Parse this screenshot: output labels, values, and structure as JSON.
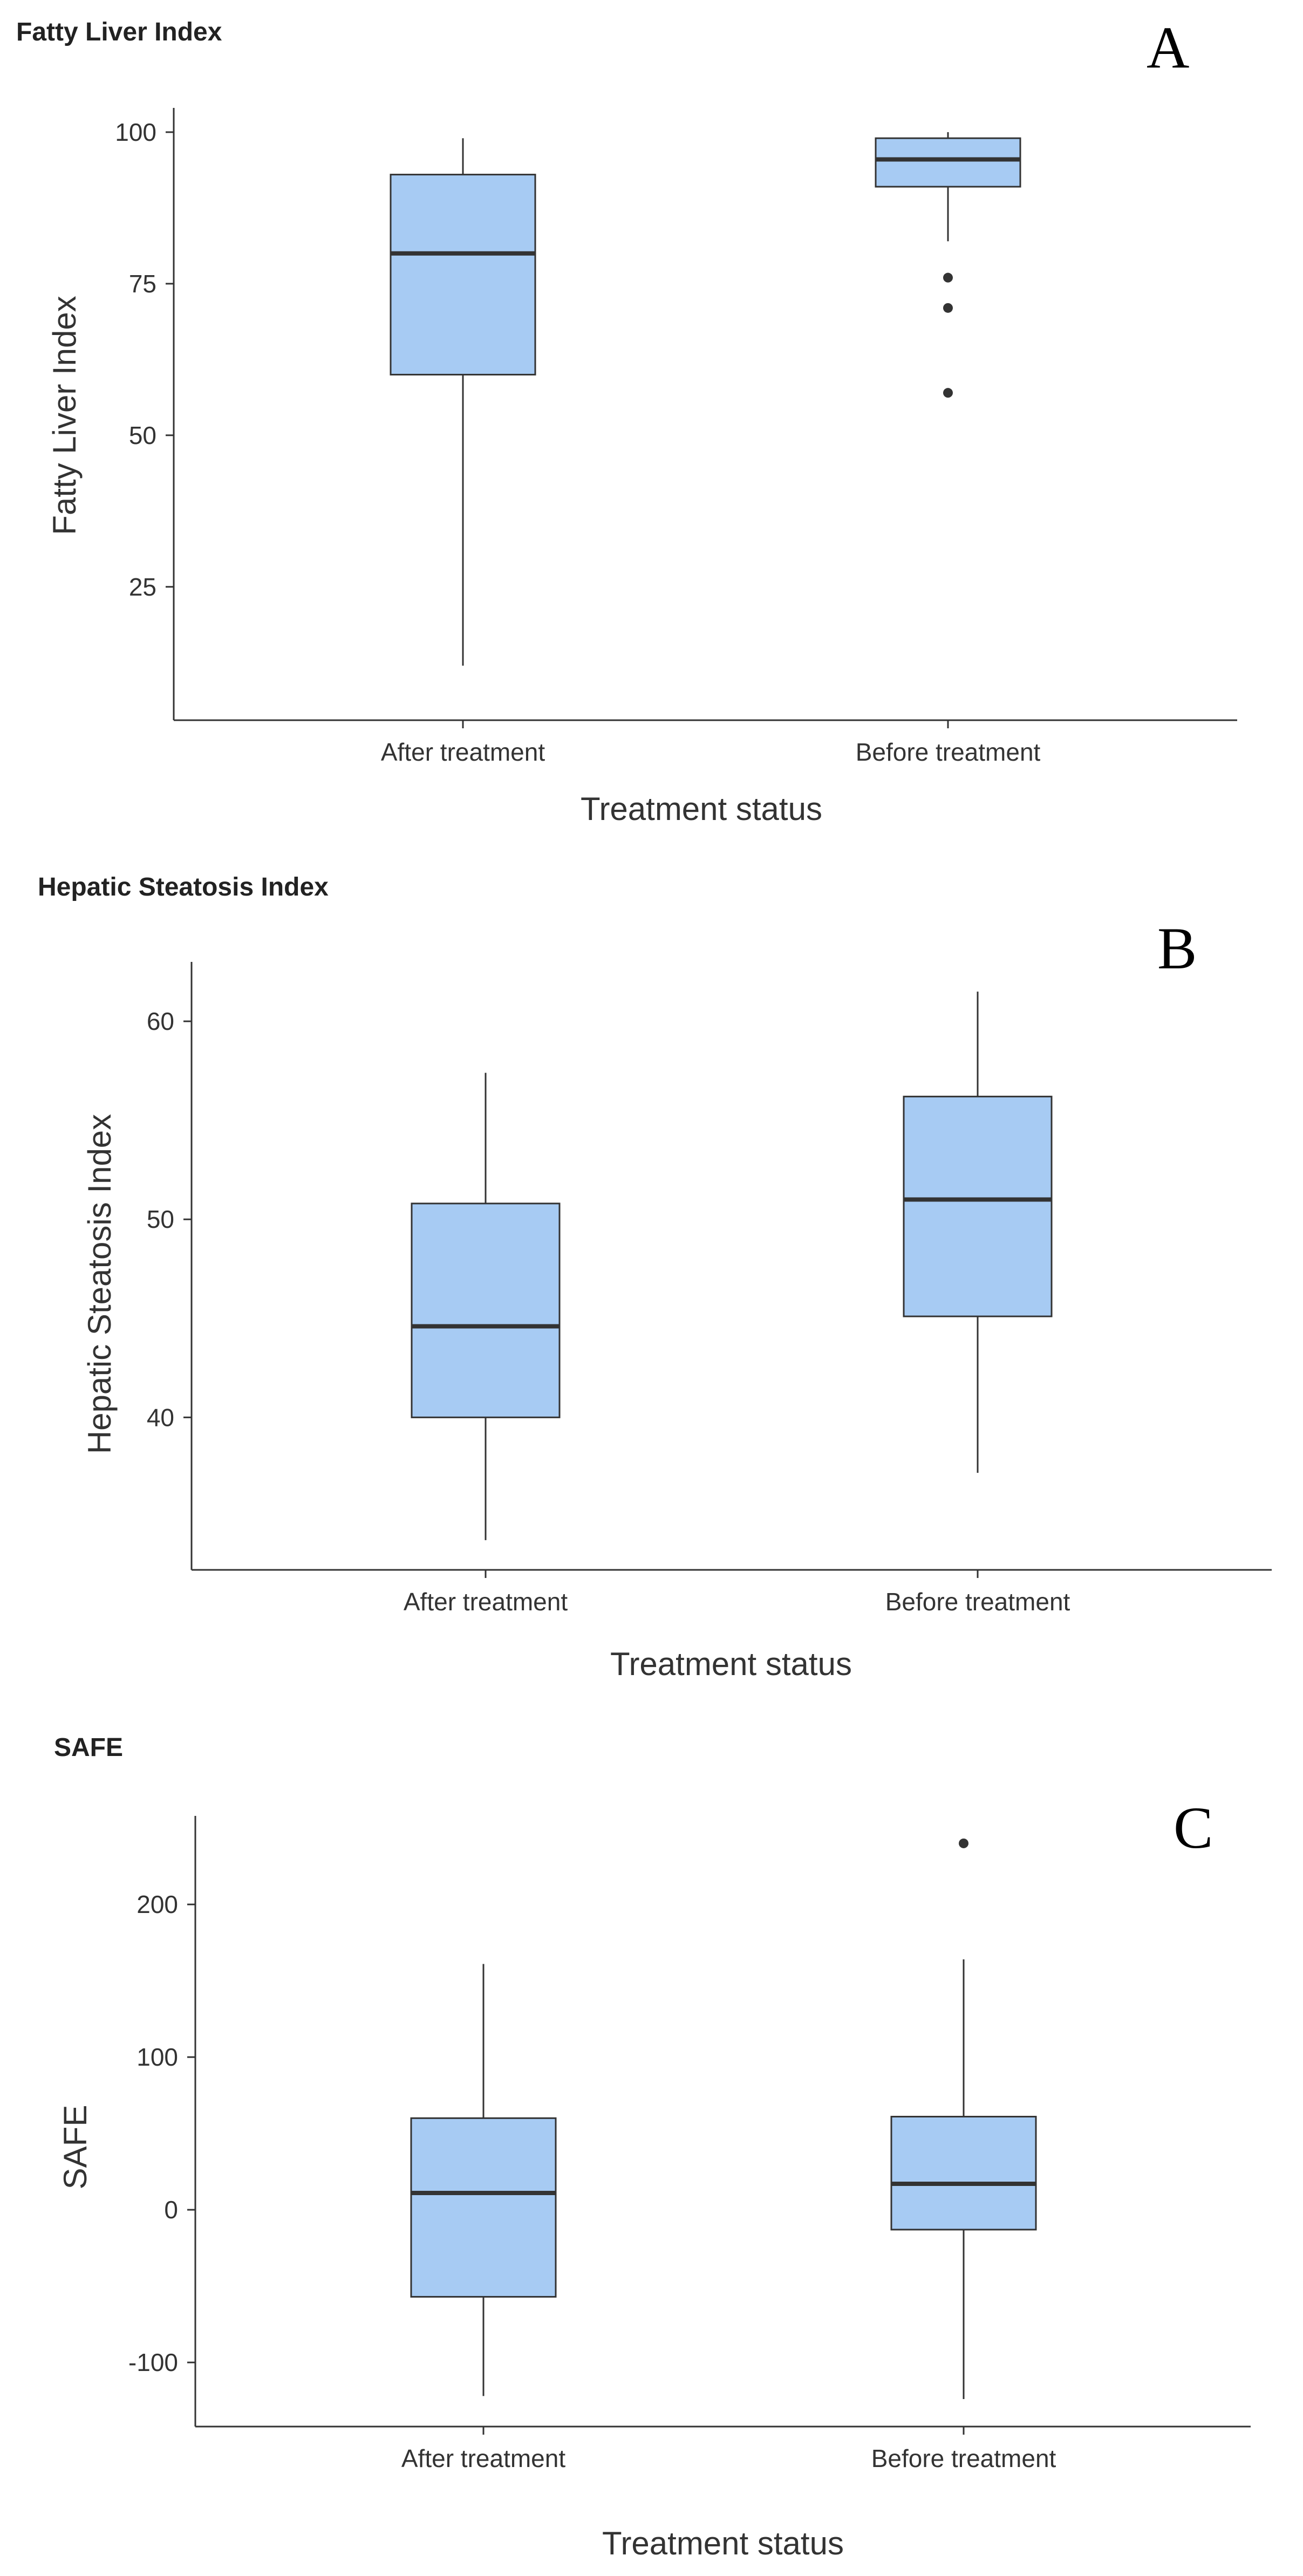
{
  "chart_data": [
    {
      "type": "box",
      "panel_label": "A",
      "title": "Fatty Liver Index",
      "xlabel": "Treatment status",
      "ylabel": "Fatty Liver Index",
      "ylim": [
        3,
        104
      ],
      "yticks": [
        25,
        50,
        75,
        100
      ],
      "categories": [
        "After treatment",
        "Before treatment"
      ],
      "boxes": [
        {
          "category": "After treatment",
          "min": 12,
          "q1": 60,
          "median": 80,
          "q3": 93,
          "max": 99,
          "outliers": []
        },
        {
          "category": "Before treatment",
          "min": 82,
          "q1": 91,
          "median": 95.5,
          "q3": 99,
          "max": 100,
          "outliers": [
            76,
            71,
            57
          ]
        }
      ]
    },
    {
      "type": "box",
      "panel_label": "B",
      "title": "Hepatic Steatosis Index",
      "xlabel": "Treatment status",
      "ylabel": "Hepatic Steatosis Index",
      "ylim": [
        32.3,
        63
      ],
      "yticks": [
        40,
        50,
        60
      ],
      "categories": [
        "After treatment",
        "Before treatment"
      ],
      "boxes": [
        {
          "category": "After treatment",
          "min": 33.8,
          "q1": 40,
          "median": 44.6,
          "q3": 50.8,
          "max": 57.4,
          "outliers": []
        },
        {
          "category": "Before treatment",
          "min": 37.2,
          "q1": 45.1,
          "median": 51,
          "q3": 56.2,
          "max": 61.5,
          "outliers": []
        }
      ]
    },
    {
      "type": "box",
      "panel_label": "C",
      "title": "SAFE",
      "xlabel": "Treatment status",
      "ylabel": "SAFE",
      "ylim": [
        -142,
        258
      ],
      "yticks": [
        -100,
        0,
        100,
        200
      ],
      "categories": [
        "After treatment",
        "Before treatment"
      ],
      "boxes": [
        {
          "category": "After treatment",
          "min": -122,
          "q1": -57,
          "median": 11,
          "q3": 60,
          "max": 161,
          "outliers": []
        },
        {
          "category": "Before treatment",
          "min": -124,
          "q1": -13,
          "median": 17,
          "q3": 61,
          "max": 164,
          "outliers": [
            240
          ]
        }
      ]
    }
  ]
}
